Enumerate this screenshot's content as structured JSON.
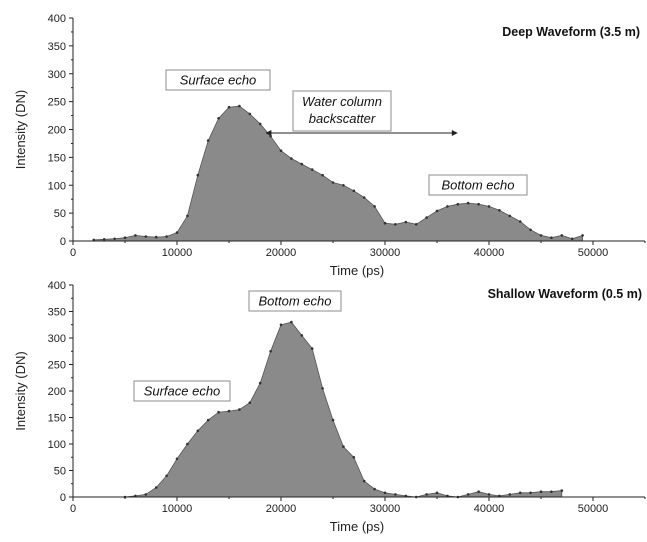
{
  "chart_data": [
    {
      "type": "area",
      "title": "Deep Waveform (3.5 m)",
      "xlabel": "Time (ps)",
      "ylabel": "Intensity (DN)",
      "xlim": [
        0,
        55000
      ],
      "ylim": [
        0,
        400
      ],
      "xticks": [
        0,
        10000,
        20000,
        30000,
        40000,
        50000
      ],
      "yticks": [
        0,
        50,
        100,
        150,
        200,
        250,
        300,
        350,
        400
      ],
      "grid": false,
      "series": [
        {
          "x": [
            2000,
            3000,
            4000,
            5000,
            6000,
            7000,
            8000,
            9000,
            10000,
            11000,
            12000,
            13000,
            14000,
            15000,
            16000,
            17000,
            18000,
            19000,
            20000,
            21000,
            22000,
            23000,
            24000,
            25000,
            26000,
            27000,
            28000,
            29000,
            30000,
            31000,
            32000,
            33000,
            34000,
            35000,
            36000,
            37000,
            38000,
            39000,
            40000,
            41000,
            42000,
            43000,
            44000,
            45000,
            46000,
            47000,
            48000,
            49000
          ],
          "y": [
            2,
            3,
            4,
            6,
            10,
            8,
            7,
            8,
            15,
            45,
            118,
            180,
            220,
            240,
            242,
            228,
            210,
            188,
            162,
            148,
            138,
            128,
            118,
            105,
            100,
            90,
            78,
            62,
            32,
            30,
            34,
            30,
            42,
            54,
            62,
            66,
            68,
            66,
            62,
            55,
            45,
            35,
            20,
            10,
            6,
            10,
            4,
            10
          ]
        }
      ],
      "annotations": [
        {
          "text": "Surface echo",
          "x": 16000,
          "y": 268
        },
        {
          "text": "Water column backscatter",
          "x": 28000,
          "y": 225,
          "arrow_from": 18500,
          "arrow_to": 37000
        },
        {
          "text": "Bottom echo",
          "x": 38000,
          "y": 90
        }
      ]
    },
    {
      "type": "area",
      "title": "Shallow Waveform (0.5 m)",
      "xlabel": "Time (ps)",
      "ylabel": "Intensity (DN)",
      "xlim": [
        0,
        55000
      ],
      "ylim": [
        0,
        400
      ],
      "xticks": [
        0,
        10000,
        20000,
        30000,
        40000,
        50000
      ],
      "yticks": [
        0,
        50,
        100,
        150,
        200,
        250,
        300,
        350,
        400
      ],
      "grid": false,
      "series": [
        {
          "x": [
            5000,
            6000,
            7000,
            8000,
            9000,
            10000,
            11000,
            12000,
            13000,
            14000,
            15000,
            16000,
            17000,
            18000,
            19000,
            20000,
            21000,
            22000,
            23000,
            24000,
            25000,
            26000,
            27000,
            28000,
            29000,
            30000,
            31000,
            32000,
            33000,
            34000,
            35000,
            36000,
            37000,
            38000,
            39000,
            40000,
            41000,
            42000,
            43000,
            44000,
            45000,
            46000,
            47000
          ],
          "y": [
            0,
            2,
            5,
            18,
            40,
            72,
            100,
            125,
            145,
            160,
            162,
            165,
            178,
            215,
            275,
            325,
            330,
            305,
            280,
            205,
            145,
            95,
            75,
            30,
            15,
            8,
            5,
            2,
            0,
            5,
            8,
            2,
            0,
            5,
            10,
            5,
            2,
            5,
            8,
            8,
            10,
            10,
            12
          ]
        }
      ],
      "annotations": [
        {
          "text": "Bottom echo",
          "x": 21000,
          "y": 355
        },
        {
          "text": "Surface echo",
          "x": 10000,
          "y": 197
        }
      ]
    }
  ]
}
